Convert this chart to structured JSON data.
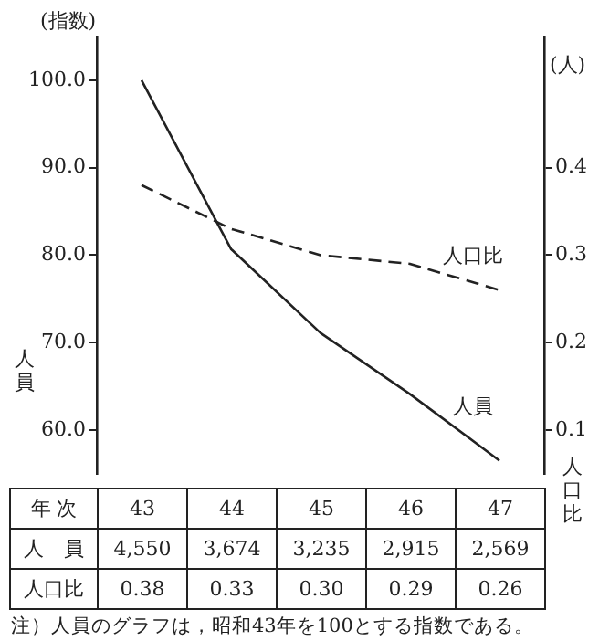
{
  "chart_data": {
    "type": "line",
    "ylabel": "(指数)",
    "y2label": "(人)",
    "xlabel": "年 次",
    "categories": [
      "43",
      "44",
      "45",
      "46",
      "47"
    ],
    "series": [
      {
        "name": "人員",
        "color": "#222222",
        "values": [
          100,
          80.7,
          71.1,
          64.1,
          56.5
        ],
        "line_style": "solid"
      },
      {
        "name": "人口比",
        "color": "#222222",
        "values": [
          0.38,
          0.33,
          0.3,
          0.29,
          0.26
        ],
        "axis": "y2",
        "line_style": "dashed",
        "value_labels": [
          "0.38",
          "0.33",
          "0.30",
          "0.29",
          "0.26"
        ]
      }
    ],
    "ylim": [
      55,
      105
    ],
    "yticks": [
      {
        "value": 60,
        "label": "60.0"
      },
      {
        "value": 70,
        "label": "70.0"
      },
      {
        "value": 80,
        "label": "80.0"
      },
      {
        "value": 90,
        "label": "90.0"
      },
      {
        "value": 100,
        "label": "100.0"
      }
    ],
    "y2lim": [
      0.05,
      0.55
    ],
    "y2ticks": [
      0.1,
      0.2,
      0.3,
      0.4
    ],
    "grid": false,
    "legend": false,
    "marker": "none",
    "annotations": [
      "人員",
      "人口比",
      "人　員",
      "4,550",
      "3,674",
      "3,235",
      "2,915",
      "2,569",
      "人口比",
      "注）人員のグラフは，昭和43年を100とする指数である。"
    ]
  }
}
